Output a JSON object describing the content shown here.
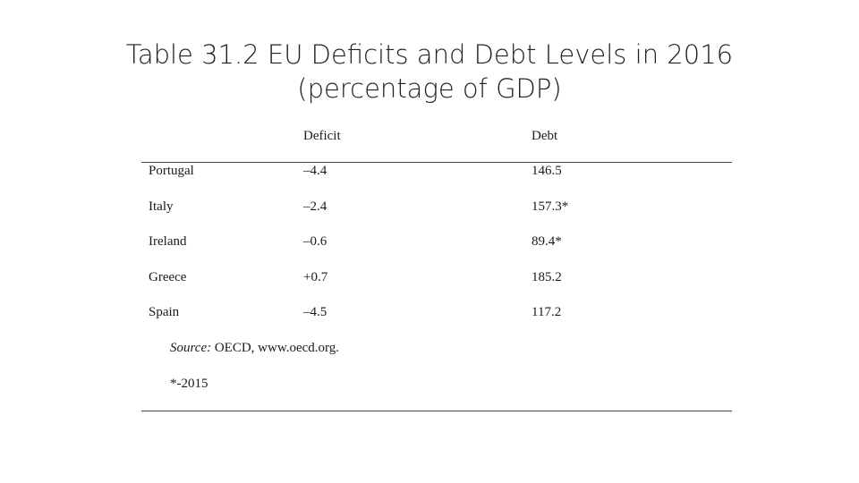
{
  "title": {
    "line1": "Table 31.2 EU Deficits and Debt Levels in 2016",
    "line2": "(percentage of GDP)"
  },
  "table": {
    "headers": {
      "deficit": "Deficit",
      "debt": "Debt"
    },
    "rows": [
      {
        "country": "Portugal",
        "deficit": "–4.4",
        "debt": "146.5"
      },
      {
        "country": "Italy",
        "deficit": "–2.4",
        "debt": "157.3*"
      },
      {
        "country": "Ireland",
        "deficit": "–0.6",
        "debt": "89.4*"
      },
      {
        "country": "Greece",
        "deficit": "+0.7",
        "debt": "185.2"
      },
      {
        "country": "Spain",
        "deficit": "–4.5",
        "debt": "117.2"
      }
    ],
    "source_label": "Source:",
    "source_text": " OECD, www.oecd.org.",
    "footnote": "*-2015"
  }
}
